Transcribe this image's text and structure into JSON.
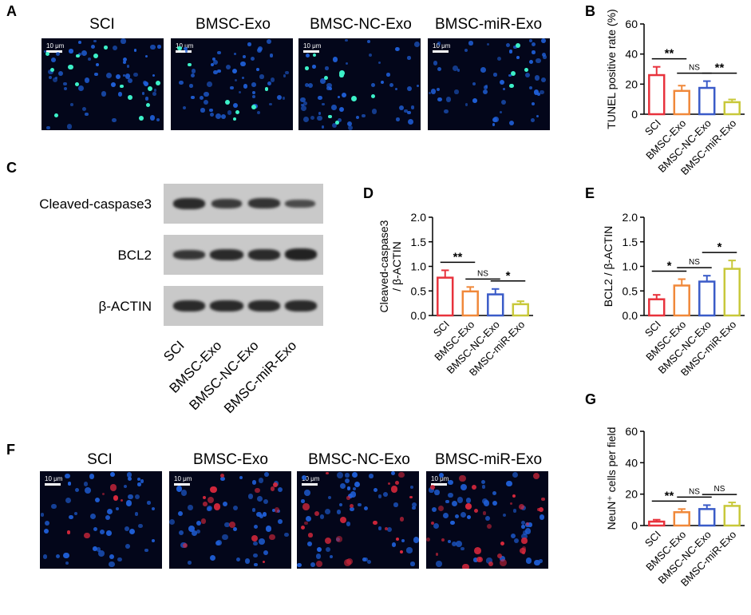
{
  "panel_labels": {
    "A": "A",
    "B": "B",
    "C": "C",
    "D": "D",
    "E": "E",
    "F": "F",
    "G": "G"
  },
  "groups": [
    "SCI",
    "BMSC-Exo",
    "BMSC-NC-Exo",
    "BMSC-miR-Exo"
  ],
  "scale_bar": "10 μm",
  "blot": {
    "rows": [
      "Cleaved-caspase3",
      "BCL2",
      "β-ACTIN"
    ],
    "lanes": [
      "SCI",
      "BMSC-Exo",
      "BMSC-NC-Exo",
      "BMSC-miR-Exo"
    ]
  },
  "colors": {
    "SCI": "#e8323c",
    "BMSC-Exo": "#f0883a",
    "BMSC-NC-Exo": "#3a5bc8",
    "BMSC-miR-Exo": "#c8c83a",
    "tunel_dapi": "#1f5fd8",
    "tunel_pos": "#3cf0c8",
    "neun": "#d8283c"
  },
  "chart_data": [
    {
      "id": "B",
      "type": "bar",
      "categories": [
        "SCI",
        "BMSC-Exo",
        "BMSC-NC-Exo",
        "BMSC-miR-Exo"
      ],
      "values": [
        26,
        15.5,
        17.5,
        8
      ],
      "errors": [
        5.5,
        3.5,
        4.5,
        1.8
      ],
      "ylabel": "TUNEL positive rate (%)",
      "ylim": [
        0,
        60
      ],
      "yticks": [
        "0",
        "20",
        "40",
        "60"
      ],
      "significance": [
        {
          "from": 0,
          "to": 1,
          "label": "**"
        },
        {
          "from": 1,
          "to": 2,
          "label": "NS"
        },
        {
          "from": 2,
          "to": 3,
          "label": "**"
        }
      ]
    },
    {
      "id": "D",
      "type": "bar",
      "categories": [
        "SCI",
        "BMSC-Exo",
        "BMSC-NC-Exo",
        "BMSC-miR-Exo"
      ],
      "values": [
        0.77,
        0.49,
        0.43,
        0.23
      ],
      "errors": [
        0.15,
        0.09,
        0.11,
        0.06
      ],
      "ylabel_lines": [
        "Cleaved-caspase3",
        "/ β-ACTIN"
      ],
      "ylim": [
        0,
        2.0
      ],
      "yticks": [
        "0.0",
        "0.5",
        "1.0",
        "1.5",
        "2.0"
      ],
      "significance": [
        {
          "from": 0,
          "to": 1,
          "label": "**"
        },
        {
          "from": 1,
          "to": 2,
          "label": "NS"
        },
        {
          "from": 2,
          "to": 3,
          "label": "*"
        }
      ]
    },
    {
      "id": "E",
      "type": "bar",
      "categories": [
        "SCI",
        "BMSC-Exo",
        "BMSC-NC-Exo",
        "BMSC-miR-Exo"
      ],
      "values": [
        0.33,
        0.61,
        0.69,
        0.95
      ],
      "errors": [
        0.09,
        0.13,
        0.12,
        0.17
      ],
      "ylabel": "BCL2 / β-ACTIN",
      "ylim": [
        0,
        2.0
      ],
      "yticks": [
        "0.0",
        "0.5",
        "1.0",
        "1.5",
        "2.0"
      ],
      "significance": [
        {
          "from": 0,
          "to": 1,
          "label": "*"
        },
        {
          "from": 1,
          "to": 2,
          "label": "NS"
        },
        {
          "from": 2,
          "to": 3,
          "label": "*"
        }
      ]
    },
    {
      "id": "G",
      "type": "bar",
      "categories": [
        "SCI",
        "BMSC-Exo",
        "BMSC-NC-Exo",
        "BMSC-miR-Exo"
      ],
      "values": [
        2.5,
        8.5,
        10.5,
        12.5
      ],
      "errors": [
        1.2,
        2,
        2.5,
        2.2
      ],
      "ylabel": "NeuN⁺ cells per field",
      "ylim": [
        0,
        60
      ],
      "yticks": [
        "0",
        "20",
        "40",
        "60"
      ],
      "significance": [
        {
          "from": 0,
          "to": 1,
          "label": "**"
        },
        {
          "from": 1,
          "to": 2,
          "label": "NS"
        },
        {
          "from": 2,
          "to": 3,
          "label": "NS"
        }
      ]
    }
  ]
}
